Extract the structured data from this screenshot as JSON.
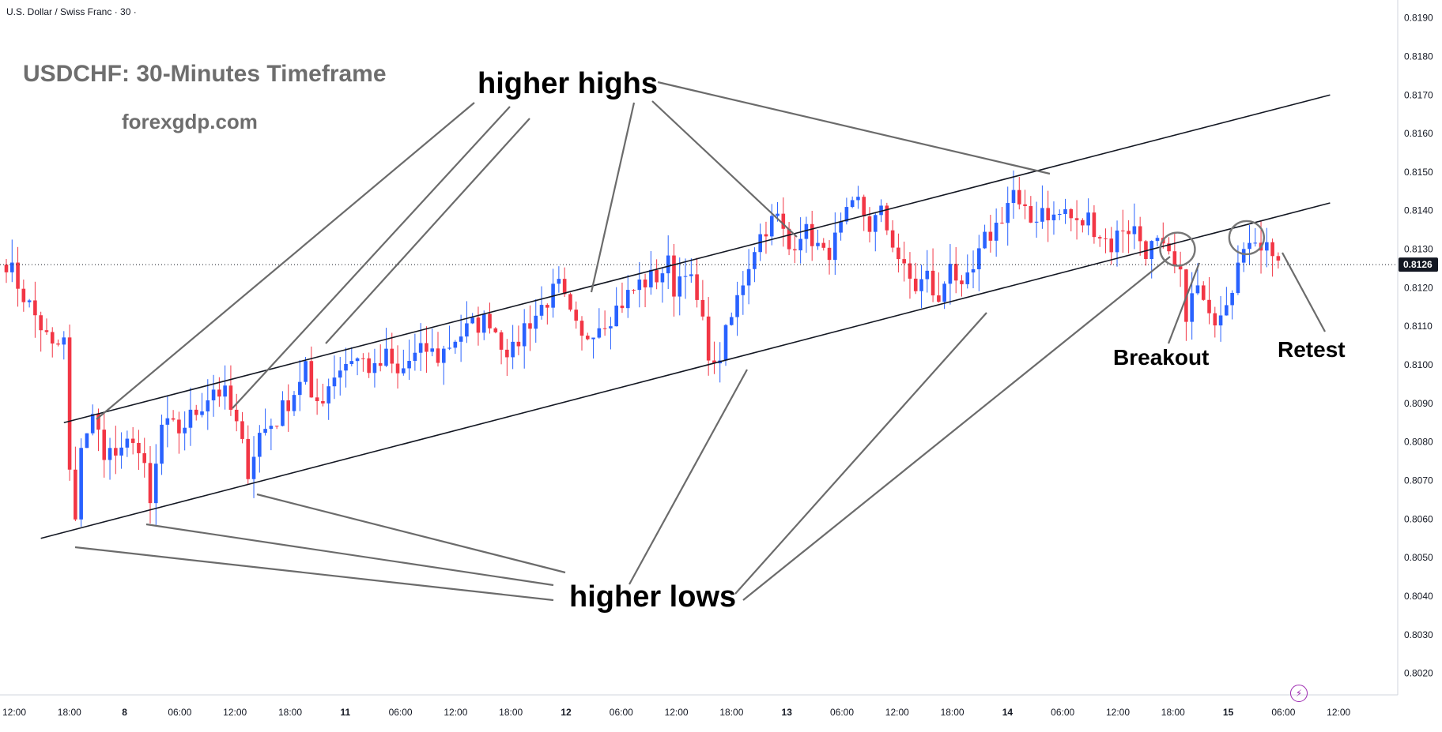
{
  "header": {
    "symbol_title": "U.S. Dollar / Swiss Franc · 30 ·",
    "chart_title": "USDCHF: 30-Minutes Timeframe",
    "site": "forexgdp.com"
  },
  "annotations": {
    "higher_highs": "higher highs",
    "higher_lows": "higher lows",
    "breakout": "Breakout",
    "retest": "Retest"
  },
  "icons": {
    "lightning": "lightning-icon"
  },
  "colors": {
    "up": "#2962ff",
    "down": "#f23645",
    "trendline": "#131722",
    "pointer": "#6b6b6b",
    "price_label_bg": "#131722",
    "price_label_text": "#ffffff"
  },
  "chart_data": {
    "type": "candlestick",
    "symbol": "USDCHF",
    "timeframe": "30",
    "ylim": [
      0.8015,
      0.8193
    ],
    "y_ticks": [
      "0.8190",
      "0.8180",
      "0.8170",
      "0.8160",
      "0.8150",
      "0.8140",
      "0.8130",
      "0.8120",
      "0.8110",
      "0.8100",
      "0.8090",
      "0.8080",
      "0.8070",
      "0.8060",
      "0.8050",
      "0.8040",
      "0.8030",
      "0.8020"
    ],
    "x_ticks": [
      "12:00",
      "18:00",
      "8",
      "06:00",
      "12:00",
      "18:00",
      "11",
      "06:00",
      "12:00",
      "18:00",
      "12",
      "06:00",
      "12:00",
      "18:00",
      "13",
      "06:00",
      "12:00",
      "18:00",
      "14",
      "06:00",
      "12:00",
      "18:00",
      "15",
      "06:00",
      "12:00"
    ],
    "last_price": "0.8126",
    "anchors": [
      [
        0,
        0.8127
      ],
      [
        3,
        0.8118
      ],
      [
        6,
        0.811
      ],
      [
        8,
        0.8104
      ],
      [
        10,
        0.8106
      ],
      [
        11,
        0.8072
      ],
      [
        12,
        0.8058
      ],
      [
        13,
        0.808
      ],
      [
        15,
        0.8086
      ],
      [
        17,
        0.8078
      ],
      [
        20,
        0.8076
      ],
      [
        22,
        0.8082
      ],
      [
        24,
        0.8072
      ],
      [
        25,
        0.8063
      ],
      [
        27,
        0.8084
      ],
      [
        30,
        0.8083
      ],
      [
        33,
        0.8088
      ],
      [
        36,
        0.8094
      ],
      [
        38,
        0.8092
      ],
      [
        40,
        0.8084
      ],
      [
        42,
        0.8073
      ],
      [
        44,
        0.8082
      ],
      [
        47,
        0.8086
      ],
      [
        50,
        0.8093
      ],
      [
        52,
        0.81
      ],
      [
        53,
        0.8089
      ],
      [
        55,
        0.8092
      ],
      [
        57,
        0.8098
      ],
      [
        60,
        0.8102
      ],
      [
        62,
        0.8101
      ],
      [
        64,
        0.8098
      ],
      [
        66,
        0.8102
      ],
      [
        68,
        0.8097
      ],
      [
        70,
        0.8101
      ],
      [
        73,
        0.8104
      ],
      [
        75,
        0.8102
      ],
      [
        78,
        0.8107
      ],
      [
        81,
        0.811
      ],
      [
        84,
        0.8112
      ],
      [
        86,
        0.8106
      ],
      [
        88,
        0.8103
      ],
      [
        90,
        0.811
      ],
      [
        92,
        0.8113
      ],
      [
        94,
        0.8117
      ],
      [
        96,
        0.812
      ],
      [
        98,
        0.8112
      ],
      [
        100,
        0.8106
      ],
      [
        102,
        0.811
      ],
      [
        105,
        0.8113
      ],
      [
        108,
        0.8118
      ],
      [
        110,
        0.8121
      ],
      [
        113,
        0.8123
      ],
      [
        115,
        0.8126
      ],
      [
        116,
        0.812
      ],
      [
        118,
        0.8126
      ],
      [
        120,
        0.8116
      ],
      [
        122,
        0.8104
      ],
      [
        123,
        0.8098
      ],
      [
        124,
        0.8103
      ],
      [
        126,
        0.8112
      ],
      [
        128,
        0.8122
      ],
      [
        130,
        0.8131
      ],
      [
        132,
        0.8136
      ],
      [
        134,
        0.8138
      ],
      [
        136,
        0.813
      ],
      [
        138,
        0.8135
      ],
      [
        140,
        0.8133
      ],
      [
        142,
        0.8128
      ],
      [
        144,
        0.8132
      ],
      [
        146,
        0.8138
      ],
      [
        148,
        0.8142
      ],
      [
        150,
        0.8136
      ],
      [
        152,
        0.8139
      ],
      [
        154,
        0.8132
      ],
      [
        156,
        0.8124
      ],
      [
        158,
        0.812
      ],
      [
        160,
        0.8123
      ],
      [
        162,
        0.8115
      ],
      [
        164,
        0.8128
      ],
      [
        166,
        0.8118
      ],
      [
        168,
        0.8124
      ],
      [
        170,
        0.8132
      ],
      [
        172,
        0.8136
      ],
      [
        174,
        0.8142
      ],
      [
        175,
        0.8145
      ],
      [
        176,
        0.814
      ],
      [
        178,
        0.8137
      ],
      [
        180,
        0.8141
      ],
      [
        182,
        0.8138
      ],
      [
        184,
        0.814
      ],
      [
        186,
        0.8136
      ],
      [
        188,
        0.8138
      ],
      [
        190,
        0.8134
      ],
      [
        192,
        0.8131
      ],
      [
        194,
        0.8136
      ],
      [
        196,
        0.8135
      ],
      [
        198,
        0.813
      ],
      [
        200,
        0.8131
      ],
      [
        202,
        0.8127
      ],
      [
        204,
        0.8122
      ],
      [
        205,
        0.8114
      ],
      [
        207,
        0.812
      ],
      [
        209,
        0.8111
      ],
      [
        211,
        0.8115
      ],
      [
        213,
        0.8121
      ],
      [
        214,
        0.8129
      ],
      [
        215,
        0.8133
      ],
      [
        217,
        0.8129
      ],
      [
        219,
        0.8134
      ],
      [
        221,
        0.8126
      ]
    ],
    "trendlines": [
      {
        "name": "channel-upper",
        "p1": [
          10,
          0.8085
        ],
        "p2": [
          230,
          0.817
        ]
      },
      {
        "name": "channel-lower",
        "p1": [
          6,
          0.8055
        ],
        "p2": [
          230,
          0.8142
        ]
      }
    ],
    "circles": [
      {
        "label": "Breakout",
        "at": [
          203.5,
          0.813
        ]
      },
      {
        "label": "Retest",
        "at": [
          215.5,
          0.8133
        ]
      }
    ]
  }
}
